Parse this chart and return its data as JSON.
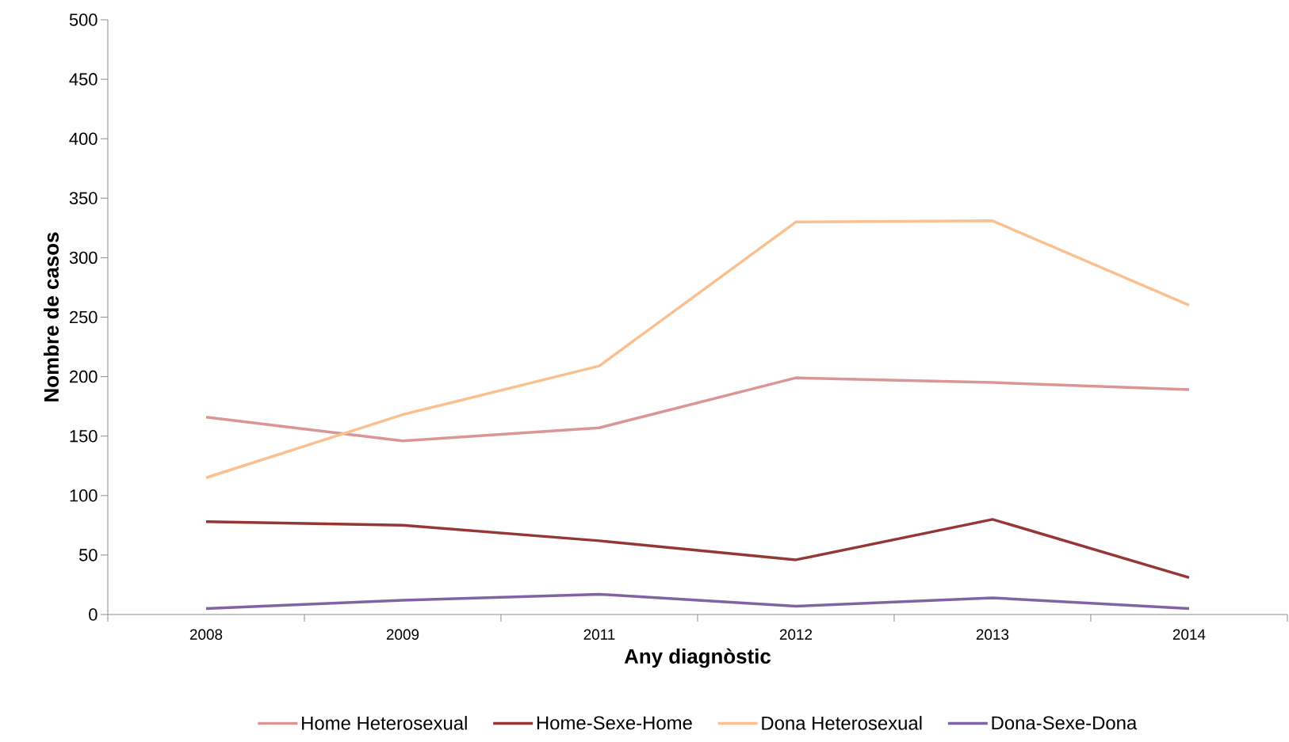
{
  "chart_data": {
    "type": "line",
    "xlabel": "Any diagnòstic",
    "ylabel": "Nombre de casos",
    "categories": [
      "2008",
      "2009",
      "2011",
      "2012",
      "2013",
      "2014"
    ],
    "series": [
      {
        "name": "Home Heterosexual",
        "color": "#d99694",
        "values": [
          166,
          146,
          157,
          199,
          195,
          189
        ]
      },
      {
        "name": "Home-Sexe-Home",
        "color": "#953735",
        "values": [
          78,
          75,
          62,
          46,
          80,
          31
        ]
      },
      {
        "name": "Dona Heterosexual",
        "color": "#fac090",
        "values": [
          115,
          168,
          209,
          330,
          331,
          260
        ]
      },
      {
        "name": "Dona-Sexe-Dona",
        "color": "#8064a2",
        "values": [
          5,
          12,
          17,
          7,
          14,
          5
        ]
      }
    ],
    "ylim": [
      0,
      500
    ],
    "yticks": [
      0,
      50,
      100,
      150,
      200,
      250,
      300,
      350,
      400,
      450,
      500
    ],
    "legend": "bottom",
    "grid": false,
    "marker": "none",
    "line_style": "solid"
  }
}
